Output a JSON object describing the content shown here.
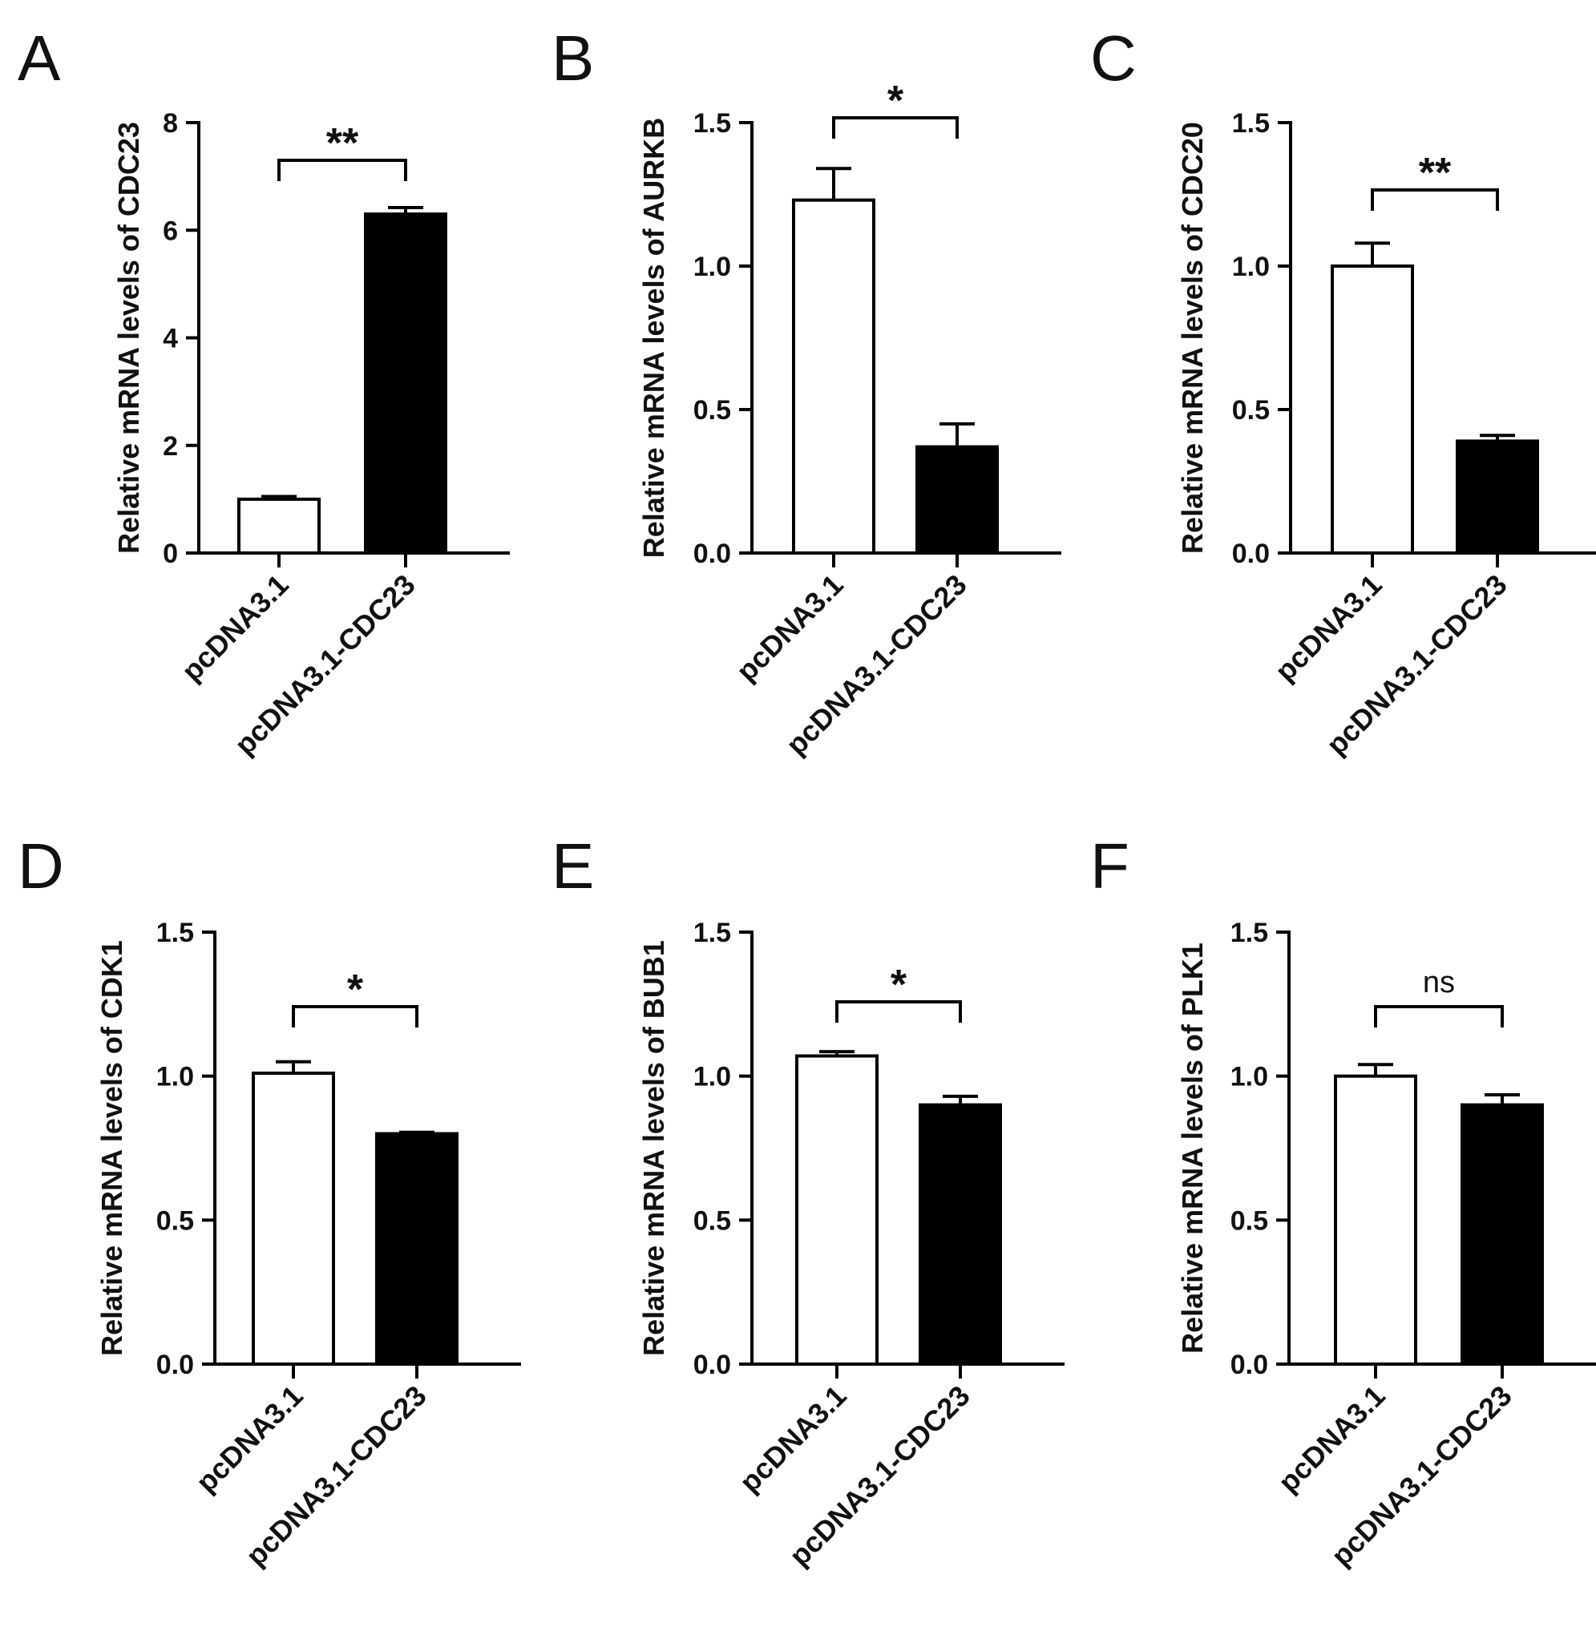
{
  "chart_data": [
    {
      "panel": "A",
      "type": "bar",
      "categories": [
        "pcDNA3.1",
        "pcDNA3.1-CDC23"
      ],
      "values": [
        1.0,
        6.3
      ],
      "errors": [
        0.05,
        0.12
      ],
      "bar_colors": [
        "#ffffff",
        "#000000"
      ],
      "ylabel": "Relative mRNA levels of CDC23",
      "ylim": [
        0,
        8
      ],
      "yticks": [
        0,
        2,
        4,
        6,
        8
      ],
      "ytick_labels": [
        "0",
        "2",
        "4",
        "6",
        "8"
      ],
      "significance": "**"
    },
    {
      "panel": "B",
      "type": "bar",
      "categories": [
        "pcDNA3.1",
        "pcDNA3.1-CDC23"
      ],
      "values": [
        1.23,
        0.37
      ],
      "errors": [
        0.11,
        0.08
      ],
      "bar_colors": [
        "#ffffff",
        "#000000"
      ],
      "ylabel": "Relative mRNA levels of AURKB",
      "ylim": [
        0,
        1.5
      ],
      "yticks": [
        0,
        0.5,
        1.0,
        1.5
      ],
      "ytick_labels": [
        "0.0",
        "0.5",
        "1.0",
        "1.5"
      ],
      "significance": "*"
    },
    {
      "panel": "C",
      "type": "bar",
      "categories": [
        "pcDNA3.1",
        "pcDNA3.1-CDC23"
      ],
      "values": [
        1.0,
        0.39
      ],
      "errors": [
        0.08,
        0.02
      ],
      "bar_colors": [
        "#ffffff",
        "#000000"
      ],
      "ylabel": "Relative mRNA levels of CDC20",
      "ylim": [
        0,
        1.5
      ],
      "yticks": [
        0,
        0.5,
        1.0,
        1.5
      ],
      "ytick_labels": [
        "0.0",
        "0.5",
        "1.0",
        "1.5"
      ],
      "significance": "**"
    },
    {
      "panel": "D",
      "type": "bar",
      "categories": [
        "pcDNA3.1",
        "pcDNA3.1-CDC23"
      ],
      "values": [
        1.01,
        0.8
      ],
      "errors": [
        0.04,
        0.005
      ],
      "bar_colors": [
        "#ffffff",
        "#000000"
      ],
      "ylabel": "Relative mRNA levels of CDK1",
      "ylim": [
        0,
        1.5
      ],
      "yticks": [
        0,
        0.5,
        1.0,
        1.5
      ],
      "ytick_labels": [
        "0.0",
        "0.5",
        "1.0",
        "1.5"
      ],
      "significance": "*"
    },
    {
      "panel": "E",
      "type": "bar",
      "categories": [
        "pcDNA3.1",
        "pcDNA3.1-CDC23"
      ],
      "values": [
        1.07,
        0.9
      ],
      "errors": [
        0.015,
        0.03
      ],
      "bar_colors": [
        "#ffffff",
        "#000000"
      ],
      "ylabel": "Relative mRNA levels of BUB1",
      "ylim": [
        0,
        1.5
      ],
      "yticks": [
        0,
        0.5,
        1.0,
        1.5
      ],
      "ytick_labels": [
        "0.0",
        "0.5",
        "1.0",
        "1.5"
      ],
      "significance": "*"
    },
    {
      "panel": "F",
      "type": "bar",
      "categories": [
        "pcDNA3.1",
        "pcDNA3.1-CDC23"
      ],
      "values": [
        1.0,
        0.9
      ],
      "errors": [
        0.04,
        0.035
      ],
      "bar_colors": [
        "#ffffff",
        "#000000"
      ],
      "ylabel": "Relative mRNA levels of PLK1",
      "ylim": [
        0,
        1.5
      ],
      "yticks": [
        0,
        0.5,
        1.0,
        1.5
      ],
      "ytick_labels": [
        "0.0",
        "0.5",
        "1.0",
        "1.5"
      ],
      "significance": "ns"
    }
  ]
}
